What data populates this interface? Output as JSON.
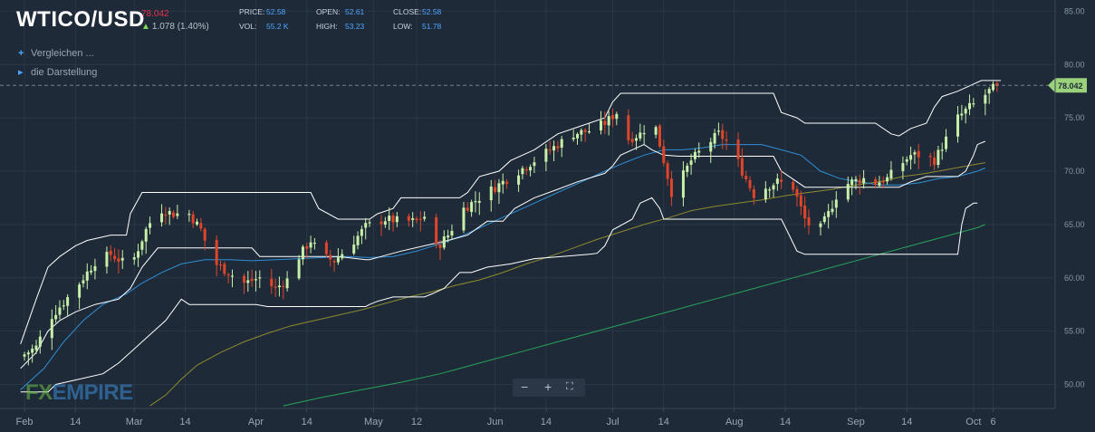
{
  "header": {
    "symbol": "WTICO/USD",
    "last_price": "78.042",
    "change": "1.078 (1.40%)",
    "stats": [
      {
        "label": "PRICE:",
        "value": "52.58"
      },
      {
        "label": "VOL:",
        "value": "55.2 K"
      },
      {
        "label": "OPEN:",
        "value": "52.61"
      },
      {
        "label": "HIGH:",
        "value": "53.23"
      },
      {
        "label": "CLOSE:",
        "value": "52.58"
      },
      {
        "label": "LOW:",
        "value": "51.78"
      }
    ]
  },
  "controls": {
    "compare_label": "Vergleichen ...",
    "display_label": "die Darstellung"
  },
  "zoom": {
    "minus": "−",
    "plus": "+",
    "fullscreen": "⛶"
  },
  "watermark": {
    "fx": "FX",
    "empire": "EMPIRE"
  },
  "colors": {
    "background": "#1e2a38",
    "up_candle": "#c8f0a8",
    "down_candle": "#e0452a",
    "band": "#ffffff",
    "ema_fast": "#2e8fd6",
    "ma_mid": "#8f8a2c",
    "ma_long": "#27a35a",
    "price_tag": "#9ad17a"
  },
  "chart_data": {
    "type": "candlestick",
    "title": "WTICO/USD",
    "ylim": [
      48,
      86.5
    ],
    "y_ticks": [
      "50.00",
      "55.00",
      "60.00",
      "65.00",
      "70.00",
      "75.00",
      "80.00",
      "85.00"
    ],
    "x_ticks": [
      {
        "label": "Feb",
        "day": 0
      },
      {
        "label": "14",
        "day": 13
      },
      {
        "label": "Mar",
        "day": 28
      },
      {
        "label": "14",
        "day": 41
      },
      {
        "label": "Apr",
        "day": 59
      },
      {
        "label": "14",
        "day": 72
      },
      {
        "label": "May",
        "day": 89
      },
      {
        "label": "12",
        "day": 100
      },
      {
        "label": "Jun",
        "day": 120
      },
      {
        "label": "14",
        "day": 133
      },
      {
        "label": "Jul",
        "day": 150
      },
      {
        "label": "14",
        "day": 163
      },
      {
        "label": "Aug",
        "day": 181
      },
      {
        "label": "14",
        "day": 194
      },
      {
        "label": "Sep",
        "day": 212
      },
      {
        "label": "14",
        "day": 225
      },
      {
        "label": "Oct",
        "day": 242
      },
      {
        "label": "6",
        "day": 247
      }
    ],
    "last_price": 78.042,
    "close_anchors": [
      [
        -1,
        52.6
      ],
      [
        3,
        53.5
      ],
      [
        6,
        56.0
      ],
      [
        13,
        59.0
      ],
      [
        18,
        61.5
      ],
      [
        22,
        62.2
      ],
      [
        27,
        61.0
      ],
      [
        31,
        64.5
      ],
      [
        34,
        66.5
      ],
      [
        38,
        66.0
      ],
      [
        42,
        66.0
      ],
      [
        45,
        64.5
      ],
      [
        48,
        61.5
      ],
      [
        52,
        60.5
      ],
      [
        56,
        59.5
      ],
      [
        60,
        60.0
      ],
      [
        64,
        59.0
      ],
      [
        67,
        59.8
      ],
      [
        70,
        62.0
      ],
      [
        73,
        63.5
      ],
      [
        76,
        62.0
      ],
      [
        79,
        61.6
      ],
      [
        83,
        63.0
      ],
      [
        87,
        64.8
      ],
      [
        92,
        65.5
      ],
      [
        96,
        65.3
      ],
      [
        100,
        65.3
      ],
      [
        103,
        66.0
      ],
      [
        105,
        62.8
      ],
      [
        108,
        64.0
      ],
      [
        112,
        66.5
      ],
      [
        116,
        67.5
      ],
      [
        120,
        68.5
      ],
      [
        124,
        69.5
      ],
      [
        128,
        70.5
      ],
      [
        132,
        71.5
      ],
      [
        136,
        72.5
      ],
      [
        140,
        73.5
      ],
      [
        144,
        73.8
      ],
      [
        148,
        74.5
      ],
      [
        151,
        75.5
      ],
      [
        154,
        73.0
      ],
      [
        157,
        73.5
      ],
      [
        159,
        74.3
      ],
      [
        161,
        74.0
      ],
      [
        163,
        71.0
      ],
      [
        165,
        68.0
      ],
      [
        167,
        69.0
      ],
      [
        170,
        71.0
      ],
      [
        174,
        72.5
      ],
      [
        177,
        73.5
      ],
      [
        180,
        72.5
      ],
      [
        183,
        70.0
      ],
      [
        186,
        67.8
      ],
      [
        189,
        68.5
      ],
      [
        192,
        69.0
      ],
      [
        196,
        68.5
      ],
      [
        199,
        65.5
      ],
      [
        202,
        64.0
      ],
      [
        205,
        66.0
      ],
      [
        208,
        68.5
      ],
      [
        211,
        69.0
      ],
      [
        214,
        69.3
      ],
      [
        217,
        68.9
      ],
      [
        220,
        69.3
      ],
      [
        223,
        70.5
      ],
      [
        226,
        71.5
      ],
      [
        229,
        71.5
      ],
      [
        232,
        71.0
      ],
      [
        235,
        73.0
      ],
      [
        238,
        75.0
      ],
      [
        241,
        76.0
      ],
      [
        243,
        76.5
      ],
      [
        246,
        77.5
      ],
      [
        248,
        78.0
      ]
    ],
    "donchian_upper": [
      [
        -1,
        53.8
      ],
      [
        3,
        58.0
      ],
      [
        6,
        61.0
      ],
      [
        9,
        62.0
      ],
      [
        13,
        63.0
      ],
      [
        16,
        63.5
      ],
      [
        22,
        64.0
      ],
      [
        26,
        64.0
      ],
      [
        27,
        66.0
      ],
      [
        30,
        68.0
      ],
      [
        39,
        68.0
      ],
      [
        55,
        68.0
      ],
      [
        73,
        68.0
      ],
      [
        75,
        66.5
      ],
      [
        80,
        65.5
      ],
      [
        88,
        65.5
      ],
      [
        90,
        66.0
      ],
      [
        94,
        66.5
      ],
      [
        96,
        67.5
      ],
      [
        102,
        67.5
      ],
      [
        111,
        67.5
      ],
      [
        113,
        68.0
      ],
      [
        116,
        69.5
      ],
      [
        121,
        70.0
      ],
      [
        124,
        71.0
      ],
      [
        130,
        72.0
      ],
      [
        136,
        73.5
      ],
      [
        140,
        74.0
      ],
      [
        148,
        75.0
      ],
      [
        150,
        76.5
      ],
      [
        152,
        77.3
      ],
      [
        172,
        77.3
      ],
      [
        191,
        77.3
      ],
      [
        193,
        75.5
      ],
      [
        197,
        75.0
      ],
      [
        199,
        74.5
      ],
      [
        217,
        74.5
      ],
      [
        221,
        73.5
      ],
      [
        223,
        73.3
      ],
      [
        226,
        74.0
      ],
      [
        230,
        74.5
      ],
      [
        232,
        76.0
      ],
      [
        234,
        77.0
      ],
      [
        238,
        77.5
      ],
      [
        241,
        78.0
      ],
      [
        244,
        78.5
      ],
      [
        249,
        78.5
      ]
    ],
    "donchian_lower": [
      [
        -1,
        49.3
      ],
      [
        6,
        49.3
      ],
      [
        8,
        50.0
      ],
      [
        14,
        50.5
      ],
      [
        20,
        51.0
      ],
      [
        24,
        52.0
      ],
      [
        30,
        54.0
      ],
      [
        36,
        56.0
      ],
      [
        40,
        58.0
      ],
      [
        42,
        57.5
      ],
      [
        47,
        57.5
      ],
      [
        56,
        57.5
      ],
      [
        59,
        57.5
      ],
      [
        62,
        57.3
      ],
      [
        87,
        57.3
      ],
      [
        88,
        57.5
      ],
      [
        90,
        57.8
      ],
      [
        94,
        58.2
      ],
      [
        102,
        58.2
      ],
      [
        104,
        58.5
      ],
      [
        107,
        59.0
      ],
      [
        111,
        60.5
      ],
      [
        114,
        60.5
      ],
      [
        118,
        61.0
      ],
      [
        124,
        61.3
      ],
      [
        130,
        61.8
      ],
      [
        144,
        62.2
      ],
      [
        146,
        62.3
      ],
      [
        148,
        63.0
      ],
      [
        150,
        64.5
      ],
      [
        155,
        65.5
      ],
      [
        157,
        67.0
      ],
      [
        160,
        67.5
      ],
      [
        162,
        66.5
      ],
      [
        163,
        65.5
      ],
      [
        168,
        65.5
      ],
      [
        179,
        65.5
      ],
      [
        189,
        65.5
      ],
      [
        193,
        65.5
      ],
      [
        195,
        64.0
      ],
      [
        197,
        62.5
      ],
      [
        199,
        62.2
      ],
      [
        236,
        62.2
      ],
      [
        238,
        62.2
      ],
      [
        239,
        65.0
      ],
      [
        240,
        66.5
      ],
      [
        242,
        67.0
      ],
      [
        243,
        67.0
      ]
    ],
    "donchian_mid": [
      [
        -1,
        51.5
      ],
      [
        3,
        53.0
      ],
      [
        6,
        55.0
      ],
      [
        9,
        56.0
      ],
      [
        13,
        56.8
      ],
      [
        18,
        57.5
      ],
      [
        24,
        58.0
      ],
      [
        27,
        59.0
      ],
      [
        30,
        61.0
      ],
      [
        34,
        62.8
      ],
      [
        39,
        62.8
      ],
      [
        42,
        62.8
      ],
      [
        47,
        62.8
      ],
      [
        50,
        62.8
      ],
      [
        58,
        62.8
      ],
      [
        60,
        62.0
      ],
      [
        64,
        62.0
      ],
      [
        72,
        62.0
      ],
      [
        75,
        62.0
      ],
      [
        80,
        62.0
      ],
      [
        87,
        61.7
      ],
      [
        88,
        61.7
      ],
      [
        91,
        62.0
      ],
      [
        96,
        62.5
      ],
      [
        102,
        63.0
      ],
      [
        108,
        63.5
      ],
      [
        113,
        64.0
      ],
      [
        118,
        65.3
      ],
      [
        122,
        65.3
      ],
      [
        125,
        66.5
      ],
      [
        130,
        67.5
      ],
      [
        136,
        68.3
      ],
      [
        141,
        69.0
      ],
      [
        148,
        69.8
      ],
      [
        150,
        70.5
      ],
      [
        152,
        71.5
      ],
      [
        158,
        72.5
      ],
      [
        160,
        72.0
      ],
      [
        163,
        71.5
      ],
      [
        167,
        71.4
      ],
      [
        177,
        71.4
      ],
      [
        180,
        71.4
      ],
      [
        183,
        71.4
      ],
      [
        191,
        71.4
      ],
      [
        193,
        70.0
      ],
      [
        195,
        69.5
      ],
      [
        199,
        68.5
      ],
      [
        205,
        68.5
      ],
      [
        211,
        68.5
      ],
      [
        217,
        68.5
      ],
      [
        220,
        68.5
      ],
      [
        223,
        68.5
      ],
      [
        226,
        69.0
      ],
      [
        230,
        69.5
      ],
      [
        234,
        69.5
      ],
      [
        238,
        69.5
      ],
      [
        240,
        70.0
      ],
      [
        242,
        71.5
      ],
      [
        243,
        72.5
      ],
      [
        245,
        72.8
      ]
    ],
    "ema_fast": [
      [
        -1,
        49.5
      ],
      [
        5,
        51.5
      ],
      [
        10,
        54.0
      ],
      [
        15,
        56.0
      ],
      [
        20,
        57.5
      ],
      [
        26,
        58.5
      ],
      [
        30,
        59.5
      ],
      [
        35,
        60.5
      ],
      [
        40,
        61.3
      ],
      [
        46,
        61.7
      ],
      [
        52,
        61.7
      ],
      [
        58,
        61.6
      ],
      [
        64,
        61.7
      ],
      [
        70,
        61.8
      ],
      [
        76,
        61.9
      ],
      [
        82,
        62.0
      ],
      [
        88,
        61.9
      ],
      [
        94,
        62.0
      ],
      [
        100,
        62.5
      ],
      [
        106,
        63.2
      ],
      [
        112,
        64.0
      ],
      [
        118,
        65.0
      ],
      [
        124,
        66.0
      ],
      [
        130,
        67.0
      ],
      [
        136,
        68.0
      ],
      [
        142,
        69.0
      ],
      [
        148,
        70.0
      ],
      [
        153,
        70.8
      ],
      [
        158,
        71.5
      ],
      [
        163,
        72.0
      ],
      [
        168,
        72.0
      ],
      [
        173,
        72.2
      ],
      [
        178,
        72.5
      ],
      [
        183,
        72.5
      ],
      [
        188,
        72.5
      ],
      [
        193,
        72.0
      ],
      [
        198,
        71.5
      ],
      [
        203,
        70.0
      ],
      [
        208,
        69.3
      ],
      [
        213,
        69.0
      ],
      [
        218,
        68.7
      ],
      [
        223,
        68.7
      ],
      [
        228,
        68.9
      ],
      [
        233,
        69.3
      ],
      [
        238,
        69.5
      ],
      [
        243,
        70.0
      ],
      [
        245,
        70.3
      ]
    ],
    "ma_mid": [
      [
        32,
        48.0
      ],
      [
        36,
        49.0
      ],
      [
        40,
        50.5
      ],
      [
        44,
        51.8
      ],
      [
        50,
        53.0
      ],
      [
        56,
        54.0
      ],
      [
        62,
        54.8
      ],
      [
        68,
        55.5
      ],
      [
        74,
        56.0
      ],
      [
        80,
        56.5
      ],
      [
        86,
        57.0
      ],
      [
        92,
        57.6
      ],
      [
        98,
        58.2
      ],
      [
        104,
        58.7
      ],
      [
        110,
        59.3
      ],
      [
        116,
        59.8
      ],
      [
        122,
        60.5
      ],
      [
        128,
        61.3
      ],
      [
        134,
        62.0
      ],
      [
        140,
        62.8
      ],
      [
        146,
        63.6
      ],
      [
        152,
        64.3
      ],
      [
        158,
        65.0
      ],
      [
        164,
        65.6
      ],
      [
        170,
        66.3
      ],
      [
        176,
        66.7
      ],
      [
        182,
        67.0
      ],
      [
        188,
        67.3
      ],
      [
        194,
        67.7
      ],
      [
        200,
        68.0
      ],
      [
        206,
        68.3
      ],
      [
        212,
        68.7
      ],
      [
        218,
        69.0
      ],
      [
        224,
        69.5
      ],
      [
        230,
        69.8
      ],
      [
        236,
        70.2
      ],
      [
        242,
        70.6
      ],
      [
        245,
        70.8
      ]
    ],
    "ma_long": [
      [
        66,
        48.0
      ],
      [
        76,
        48.8
      ],
      [
        86,
        49.5
      ],
      [
        96,
        50.2
      ],
      [
        106,
        51.0
      ],
      [
        116,
        52.0
      ],
      [
        126,
        53.0
      ],
      [
        136,
        54.0
      ],
      [
        146,
        55.0
      ],
      [
        156,
        56.0
      ],
      [
        166,
        57.0
      ],
      [
        176,
        58.0
      ],
      [
        186,
        59.0
      ],
      [
        196,
        60.0
      ],
      [
        206,
        61.0
      ],
      [
        216,
        62.0
      ],
      [
        226,
        63.0
      ],
      [
        236,
        64.0
      ],
      [
        243,
        64.7
      ],
      [
        245,
        65.0
      ]
    ]
  }
}
